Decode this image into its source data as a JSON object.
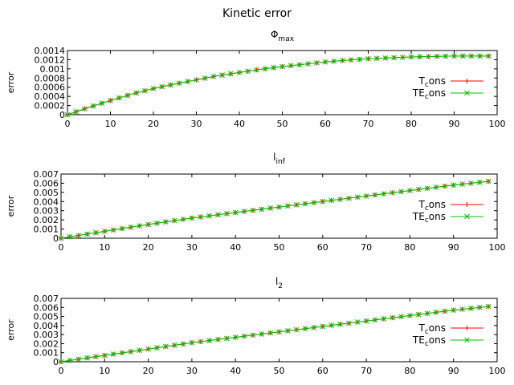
{
  "figure": {
    "title": "Kinetic error"
  },
  "colors": {
    "tcons": "#ff0000",
    "tecons": "#00c000",
    "frame": "#000000"
  },
  "chart_data": [
    {
      "type": "line",
      "title": "Φ",
      "title_sub": "max",
      "xlabel": "",
      "ylabel": "error",
      "xlim": [
        0,
        100
      ],
      "ylim": [
        0,
        0.0014
      ],
      "xticks": [
        "0",
        "10",
        "20",
        "30",
        "40",
        "50",
        "60",
        "70",
        "80",
        "90",
        "100"
      ],
      "yticks": [
        "0",
        "0.0002",
        "0.0004",
        "0.0006",
        "0.0008",
        "0.001",
        "0.0012",
        "0.0014"
      ],
      "legend_position": "bottom-right",
      "x": [
        0,
        5,
        10,
        15,
        20,
        25,
        30,
        35,
        40,
        45,
        50,
        55,
        60,
        65,
        70,
        75,
        80,
        85,
        90,
        95,
        98
      ],
      "series": [
        {
          "name": "T",
          "name_sub": "c",
          "name_suffix": "ons",
          "marker": "plus",
          "values": [
            0,
            0.00016,
            0.00031,
            0.00045,
            0.00057,
            0.00067,
            0.00076,
            0.00085,
            0.00092,
            0.00099,
            0.00105,
            0.0011,
            0.00115,
            0.00119,
            0.00122,
            0.00124,
            0.00126,
            0.00127,
            0.00128,
            0.00128,
            0.00128
          ]
        },
        {
          "name": "TE",
          "name_sub": "c",
          "name_suffix": "ons",
          "marker": "x",
          "values": [
            0,
            0.00016,
            0.00031,
            0.00045,
            0.00057,
            0.00067,
            0.00076,
            0.00085,
            0.00092,
            0.00099,
            0.00105,
            0.0011,
            0.00115,
            0.00119,
            0.00122,
            0.00124,
            0.00126,
            0.00127,
            0.00128,
            0.00128,
            0.00128
          ]
        }
      ]
    },
    {
      "type": "line",
      "title": "l",
      "title_sub": "inf",
      "xlabel": "",
      "ylabel": "error",
      "xlim": [
        0,
        100
      ],
      "ylim": [
        0,
        0.007
      ],
      "xticks": [
        "0",
        "10",
        "20",
        "30",
        "40",
        "50",
        "60",
        "70",
        "80",
        "90",
        "100"
      ],
      "yticks": [
        "0",
        "0.001",
        "0.002",
        "0.003",
        "0.004",
        "0.005",
        "0.006",
        "0.007"
      ],
      "legend_position": "bottom-right",
      "x": [
        0,
        10,
        20,
        30,
        40,
        50,
        60,
        70,
        80,
        90,
        98
      ],
      "series": [
        {
          "name": "T",
          "name_sub": "c",
          "name_suffix": "ons",
          "marker": "plus",
          "values": [
            0,
            0.00075,
            0.0015,
            0.0022,
            0.0028,
            0.0034,
            0.004,
            0.0046,
            0.0052,
            0.0058,
            0.0062
          ]
        },
        {
          "name": "TE",
          "name_sub": "c",
          "name_suffix": "ons",
          "marker": "x",
          "values": [
            0,
            0.00075,
            0.0015,
            0.0022,
            0.0028,
            0.0034,
            0.004,
            0.0046,
            0.0052,
            0.0058,
            0.0062
          ]
        }
      ]
    },
    {
      "type": "line",
      "title": "l",
      "title_sub": "2",
      "xlabel": "",
      "ylabel": "error",
      "xlim": [
        0,
        100
      ],
      "ylim": [
        0,
        0.007
      ],
      "xticks": [
        "0",
        "10",
        "20",
        "30",
        "40",
        "50",
        "60",
        "70",
        "80",
        "90",
        "100"
      ],
      "yticks": [
        "0",
        "0.001",
        "0.002",
        "0.003",
        "0.004",
        "0.005",
        "0.006",
        "0.007"
      ],
      "legend_position": "bottom-right",
      "x": [
        0,
        10,
        20,
        30,
        40,
        50,
        60,
        70,
        80,
        90,
        98
      ],
      "series": [
        {
          "name": "T",
          "name_sub": "c",
          "name_suffix": "ons",
          "marker": "plus",
          "values": [
            0,
            0.0007,
            0.0014,
            0.0021,
            0.0027,
            0.0033,
            0.0039,
            0.0045,
            0.0051,
            0.0057,
            0.0061
          ]
        },
        {
          "name": "TE",
          "name_sub": "c",
          "name_suffix": "ons",
          "marker": "x",
          "values": [
            0,
            0.0007,
            0.0014,
            0.0021,
            0.0027,
            0.0033,
            0.0039,
            0.0045,
            0.0051,
            0.0057,
            0.0061
          ]
        }
      ]
    }
  ]
}
